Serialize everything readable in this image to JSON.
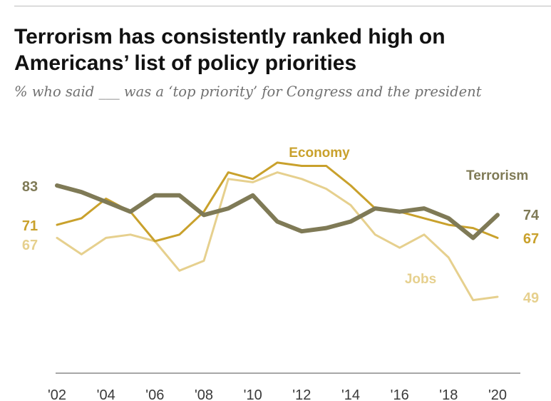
{
  "header": {
    "title": "Terrorism has consistently ranked high on Americans’ list of policy priorities",
    "subtitle": "% who said ___ was a ‘top priority’ for Congress and the president"
  },
  "chart_data": {
    "type": "line",
    "x": [
      2002,
      2003,
      2004,
      2005,
      2006,
      2007,
      2008,
      2009,
      2010,
      2011,
      2012,
      2013,
      2014,
      2015,
      2016,
      2017,
      2018,
      2019,
      2020
    ],
    "x_tick_labels": [
      "'02",
      "'04",
      "'06",
      "'08",
      "'10",
      "'12",
      "'14",
      "'16",
      "'18",
      "'20"
    ],
    "ylim": [
      30,
      95
    ],
    "grid": false,
    "legend": "direct labels",
    "series": [
      {
        "name": "Economy",
        "color": "#c9a12c",
        "values": [
          71,
          73,
          79,
          75,
          66,
          68,
          75,
          87,
          85,
          90,
          89,
          89,
          83,
          76,
          75,
          73,
          71,
          70,
          67
        ],
        "start_label": "71",
        "end_label": "67"
      },
      {
        "name": "Terrorism",
        "color": "#7f7a56",
        "values": [
          83,
          81,
          78,
          75,
          80,
          80,
          74,
          76,
          80,
          72,
          69,
          70,
          72,
          76,
          75,
          76,
          73,
          67,
          74
        ],
        "start_label": "83",
        "end_label": "74"
      },
      {
        "name": "Jobs",
        "color": "#e6d08e",
        "values": [
          67,
          62,
          67,
          68,
          66,
          57,
          60,
          85,
          84,
          87,
          85,
          82,
          77,
          68,
          64,
          68,
          61,
          48,
          49
        ],
        "start_label": "67",
        "end_label": "49"
      }
    ]
  }
}
